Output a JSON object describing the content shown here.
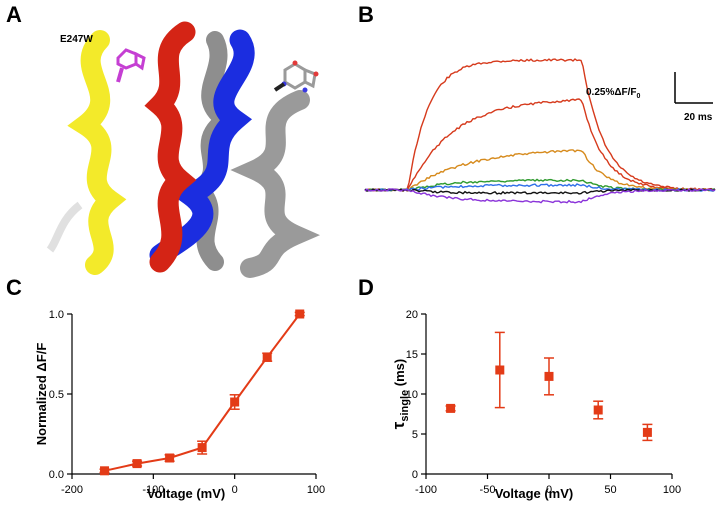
{
  "panels": {
    "a": "A",
    "b": "B",
    "c": "C",
    "d": "D"
  },
  "structure": {
    "mutant_label": "E247W",
    "helix_colors": [
      "#f3ea2a",
      "#d42415",
      "#1b2de0",
      "#9a9a9a"
    ],
    "trp_color": "#c53fd3"
  },
  "traces": {
    "scale_y_label": "0.25%ΔF/F",
    "scale_y_sub": "0",
    "scale_x_label": "20 ms",
    "colors": [
      "#d63a1c",
      "#d63a1c",
      "#d68a1c",
      "#2e9a2e",
      "#2f6fe8",
      "#111111",
      "#8a33d9"
    ]
  },
  "chart_data": [
    {
      "type": "line",
      "panel": "C",
      "x": [
        -160,
        -120,
        -80,
        -40,
        0,
        40,
        80
      ],
      "y": [
        0.02,
        0.065,
        0.1,
        0.165,
        0.45,
        0.73,
        1.0
      ],
      "yerr": [
        0.01,
        0.015,
        0.02,
        0.04,
        0.045,
        0.025,
        0.01
      ],
      "xlabel": "Voltage (mV)",
      "ylabel": "Normalized  ΔF/F",
      "xlim": [
        -200,
        100
      ],
      "ylim": [
        0,
        1.0
      ],
      "xticks": [
        "-200",
        "-100",
        "0",
        "100"
      ],
      "xtick_values": [
        -200,
        -100,
        0,
        100
      ],
      "yticks": [
        "0.0",
        "0.5",
        "1.0"
      ],
      "ytick_values": [
        0,
        0.5,
        1.0
      ],
      "color": "#e33b17"
    },
    {
      "type": "scatter",
      "panel": "D",
      "x": [
        -80,
        -40,
        0,
        40,
        80
      ],
      "y": [
        8.2,
        13.0,
        12.2,
        8.0,
        5.2
      ],
      "yerr": [
        0.3,
        4.7,
        2.3,
        1.1,
        1.0
      ],
      "xlabel": "Voltage (mV)",
      "ylabel_main": "τ",
      "ylabel_sub": "single",
      "ylabel_unit": " (ms)",
      "xlim": [
        -100,
        100
      ],
      "ylim": [
        0,
        20
      ],
      "xticks": [
        "-100",
        "-50",
        "0",
        "50",
        "100"
      ],
      "xtick_values": [
        -100,
        -50,
        0,
        50,
        100
      ],
      "yticks": [
        "0",
        "5",
        "10",
        "15",
        "20"
      ],
      "ytick_values": [
        0,
        5,
        10,
        15,
        20
      ],
      "color": "#e33b17"
    }
  ]
}
